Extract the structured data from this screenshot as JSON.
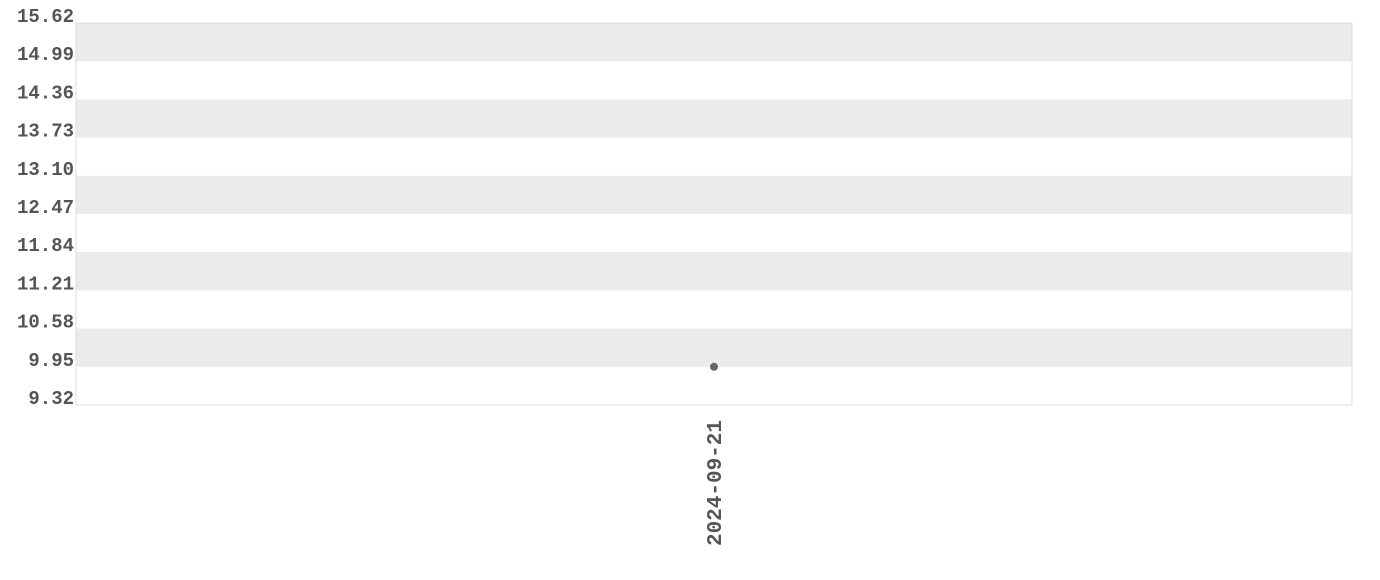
{
  "chart_data": {
    "type": "scatter",
    "title": "",
    "xlabel": "",
    "ylabel": "",
    "x_categories": [
      "2024-09-21"
    ],
    "y_ticks": [
      9.32,
      9.95,
      10.58,
      11.21,
      11.84,
      12.47,
      13.1,
      13.73,
      14.36,
      14.99,
      15.62
    ],
    "y_tick_labels": [
      "9.32",
      "9.95",
      "10.58",
      "11.21",
      "11.84",
      "12.47",
      "13.10",
      "13.73",
      "14.36",
      "14.99",
      "15.62"
    ],
    "ylim": [
      9.32,
      15.62
    ],
    "grid": "alternating horizontal bands",
    "legend": "none",
    "series": [
      {
        "points": [
          {
            "x": "2024-09-21",
            "y": 9.95
          }
        ],
        "color": "#666666"
      }
    ],
    "colors": {
      "band": "#ebebeb",
      "border": "#dddddd",
      "text": "#555555"
    }
  }
}
